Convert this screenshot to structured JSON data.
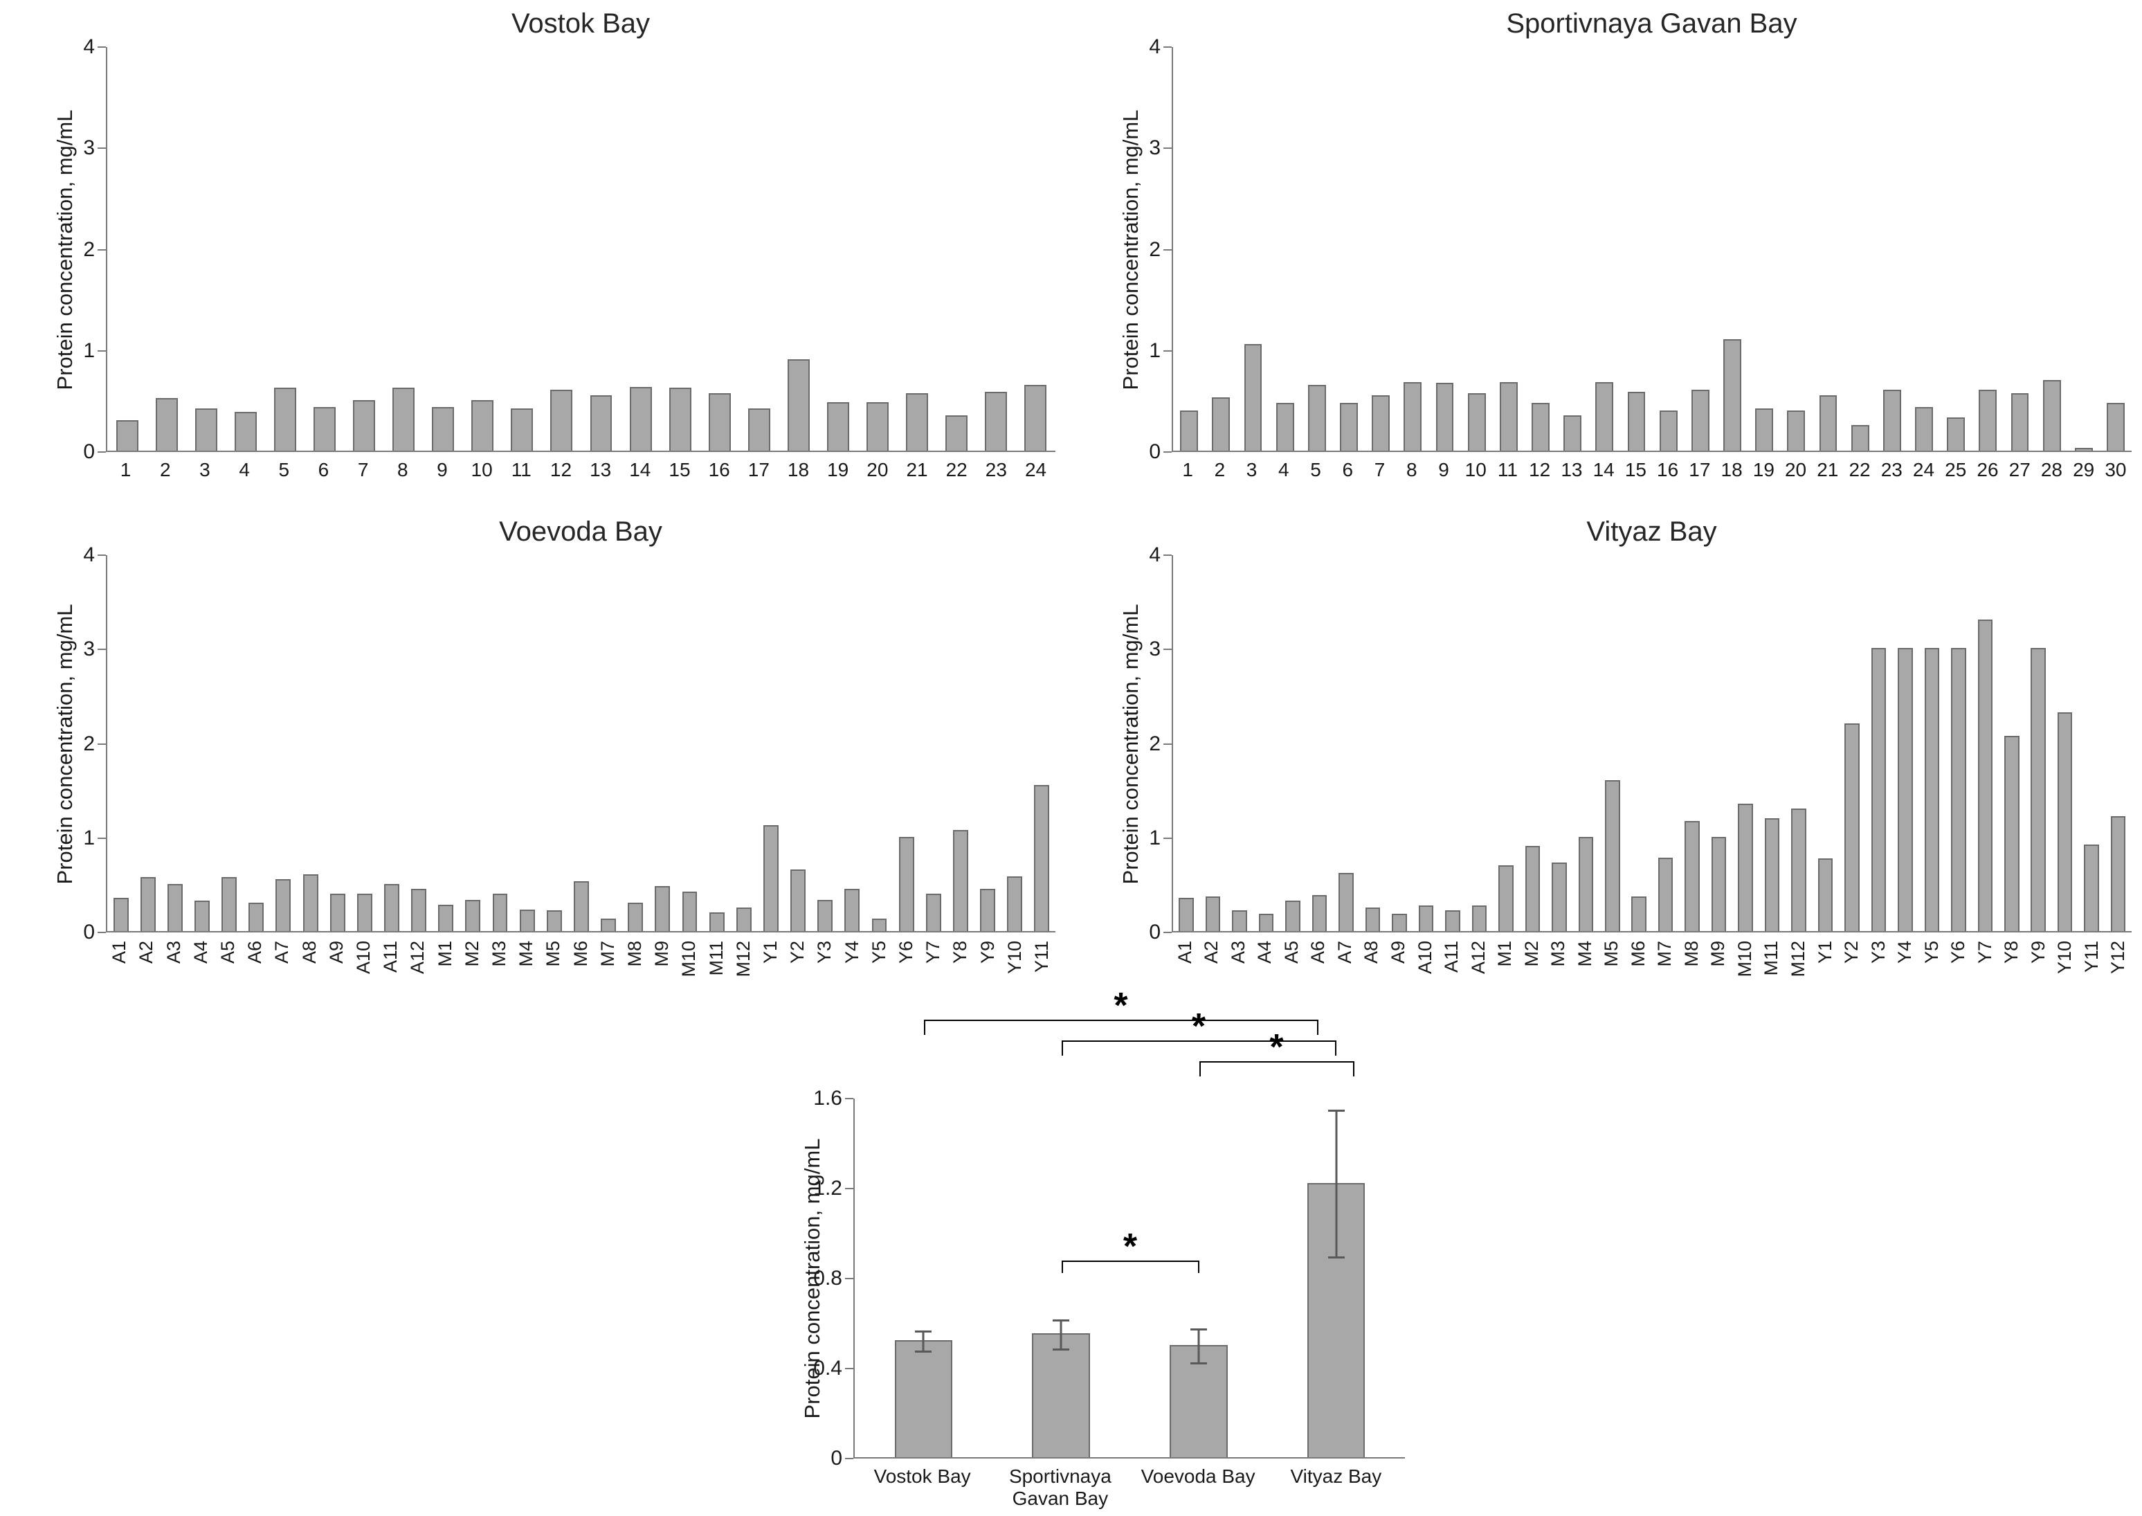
{
  "colors": {
    "bar_fill": "#a8a8a8",
    "bar_border": "#6b6b6b",
    "axis": "#7a7a7a",
    "error_bar": "#595959",
    "significance": "#000000"
  },
  "chart_data": [
    {
      "type": "bar",
      "title": "Vostok Bay",
      "ylabel": "Protein concentration, mg/mL",
      "ylim": [
        0,
        4
      ],
      "yticks": [
        0,
        1,
        2,
        3,
        4
      ],
      "categories": [
        "1",
        "2",
        "3",
        "4",
        "5",
        "6",
        "7",
        "8",
        "9",
        "10",
        "11",
        "12",
        "13",
        "14",
        "15",
        "16",
        "17",
        "18",
        "19",
        "20",
        "21",
        "22",
        "23",
        "24"
      ],
      "values": [
        0.3,
        0.52,
        0.42,
        0.38,
        0.62,
        0.43,
        0.5,
        0.62,
        0.43,
        0.5,
        0.42,
        0.6,
        0.55,
        0.63,
        0.62,
        0.57,
        0.42,
        0.9,
        0.48,
        0.48,
        0.57,
        0.35,
        0.58,
        0.65
      ]
    },
    {
      "type": "bar",
      "title": "Sportivnaya Gavan Bay",
      "ylabel": "Protein concentration, mg/mL",
      "ylim": [
        0,
        4
      ],
      "yticks": [
        0,
        1,
        2,
        3,
        4
      ],
      "categories": [
        "1",
        "2",
        "3",
        "4",
        "5",
        "6",
        "7",
        "8",
        "9",
        "10",
        "11",
        "12",
        "13",
        "14",
        "15",
        "16",
        "17",
        "18",
        "19",
        "20",
        "21",
        "22",
        "23",
        "24",
        "25",
        "26",
        "27",
        "28",
        "29",
        "30"
      ],
      "values": [
        0.4,
        0.53,
        1.05,
        0.47,
        0.65,
        0.47,
        0.55,
        0.68,
        0.67,
        0.57,
        0.68,
        0.47,
        0.35,
        0.68,
        0.58,
        0.4,
        0.6,
        1.1,
        0.42,
        0.4,
        0.55,
        0.25,
        0.6,
        0.43,
        0.33,
        0.6,
        0.57,
        0.7,
        0.03,
        0.47
      ]
    },
    {
      "type": "bar",
      "title": "Voevoda Bay",
      "ylabel": "Protein concentration, mg/mL",
      "ylim": [
        0,
        4
      ],
      "yticks": [
        0,
        1,
        2,
        3,
        4
      ],
      "categories": [
        "A1",
        "A2",
        "A3",
        "A4",
        "A5",
        "A6",
        "A7",
        "A8",
        "A9",
        "A10",
        "A11",
        "A12",
        "M1",
        "M2",
        "M3",
        "M4",
        "M5",
        "M6",
        "M7",
        "M8",
        "M9",
        "M10",
        "M11",
        "M12",
        "Y1",
        "Y2",
        "Y3",
        "Y4",
        "Y5",
        "Y6",
        "Y7",
        "Y8",
        "Y9",
        "Y10",
        "Y11"
      ],
      "values": [
        0.35,
        0.57,
        0.5,
        0.32,
        0.57,
        0.3,
        0.55,
        0.6,
        0.4,
        0.4,
        0.5,
        0.45,
        0.28,
        0.33,
        0.4,
        0.23,
        0.22,
        0.53,
        0.13,
        0.3,
        0.48,
        0.42,
        0.2,
        0.25,
        1.12,
        0.65,
        0.33,
        0.45,
        0.13,
        1.0,
        0.4,
        1.07,
        0.45,
        0.58,
        1.55
      ]
    },
    {
      "type": "bar",
      "title": "Vityaz Bay",
      "ylabel": "Protein concentration, mg/mL",
      "ylim": [
        0,
        4
      ],
      "yticks": [
        0,
        1,
        2,
        3,
        4
      ],
      "categories": [
        "A1",
        "A2",
        "A3",
        "A4",
        "A5",
        "A6",
        "A7",
        "A8",
        "A9",
        "A10",
        "A11",
        "A12",
        "M1",
        "M2",
        "M3",
        "M4",
        "M5",
        "M6",
        "M7",
        "M8",
        "M9",
        "M10",
        "M11",
        "M12",
        "Y1",
        "Y2",
        "Y3",
        "Y4",
        "Y5",
        "Y6",
        "Y7",
        "Y8",
        "Y9",
        "Y10",
        "Y11",
        "Y12"
      ],
      "values": [
        0.35,
        0.37,
        0.22,
        0.18,
        0.32,
        0.38,
        0.62,
        0.25,
        0.18,
        0.27,
        0.22,
        0.27,
        0.7,
        0.9,
        0.73,
        1.0,
        1.6,
        0.37,
        0.78,
        1.17,
        1.0,
        1.35,
        1.2,
        1.3,
        0.77,
        2.2,
        3.0,
        3.0,
        3.0,
        3.0,
        3.3,
        2.07,
        3.0,
        2.32,
        0.92,
        1.22
      ]
    },
    {
      "type": "bar",
      "title": "",
      "ylabel": "Protein concentration, mg/mL",
      "ylim": [
        0,
        1.6
      ],
      "yticks": [
        0,
        0.4,
        0.8,
        1.2,
        1.6
      ],
      "categories": [
        "Vostok Bay",
        "Sportivnaya Gavan Bay",
        "Voevoda Bay",
        "Vityaz Bay"
      ],
      "values": [
        0.52,
        0.55,
        0.5,
        1.22
      ],
      "errors": [
        0.05,
        0.07,
        0.08,
        0.33
      ],
      "significance": [
        {
          "from": 0,
          "to": 3,
          "label": "*",
          "tier": 3
        },
        {
          "from": 1,
          "to": 3,
          "label": "*",
          "tier": 2
        },
        {
          "from": 2,
          "to": 3,
          "label": "*",
          "tier": 1
        },
        {
          "from": 1,
          "to": 2,
          "label": "*",
          "y": 0.88
        }
      ]
    }
  ]
}
